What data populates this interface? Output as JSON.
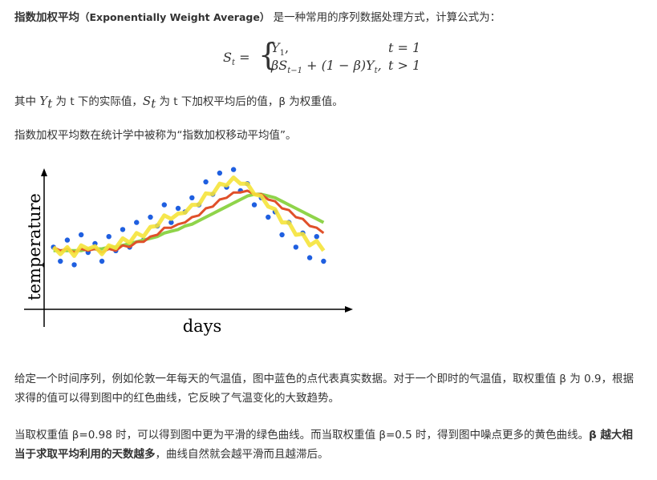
{
  "intro": {
    "term": "指数加权平均",
    "english": "（Exponentially Weight Average）",
    "rest": "是一种常用的序列数据处理方式，计算公式为："
  },
  "formula": {
    "lhs": "S",
    "lhs_sub": "t",
    "eq": "=",
    "case1": "Y",
    "case1_sub": "1",
    "case1_tail": ",",
    "case1_cond": "t = 1",
    "case2_a": "βS",
    "case2_sub": "t−1",
    "case2_b": " + (1 − β)Y",
    "case2_sub2": "t",
    "case2_tail": ",",
    "case2_cond": "t > 1"
  },
  "definition": {
    "a": "其中 ",
    "y": "Y",
    "y_sub": "t",
    "b": " 为 t 下的实际值，",
    "s": "S",
    "s_sub": "t",
    "c": " 为 t 下加权平均后的值，β 为权重值。"
  },
  "note": "指数加权平均数在统计学中被称为“指数加权移动平均值”。",
  "chart_data": {
    "type": "scatter",
    "xlabel": "days",
    "ylabel": "temperature",
    "xlim": [
      0,
      41
    ],
    "ylim": [
      10,
      85
    ],
    "x": [
      1,
      2,
      3,
      4,
      5,
      6,
      7,
      8,
      9,
      10,
      11,
      12,
      13,
      14,
      15,
      16,
      17,
      18,
      19,
      20,
      21,
      22,
      23,
      24,
      25,
      26,
      27,
      28,
      29,
      30,
      31,
      32,
      33,
      34,
      35,
      36,
      37,
      38,
      39,
      40
    ],
    "series": [
      {
        "color": "#1f5fe0",
        "values": [
          38,
          30,
          42,
          28,
          45,
          35,
          40,
          30,
          44,
          36,
          48,
          38,
          52,
          42,
          55,
          50,
          62,
          52,
          60,
          58,
          66,
          62,
          75,
          68,
          80,
          72,
          82,
          70,
          74,
          62,
          66,
          55,
          58,
          45,
          52,
          38,
          46,
          32,
          44,
          30
        ]
      },
      {
        "color": "#f5e33a",
        "values": [
          38,
          34,
          38,
          33,
          39,
          37,
          38.5,
          34,
          39,
          37.5,
          43,
          40.5,
          46,
          44,
          49.5,
          50,
          56,
          54,
          57,
          57.5,
          62,
          62,
          68.5,
          68,
          74,
          73,
          77.5,
          74,
          74,
          68,
          67,
          61,
          59.5,
          52,
          52,
          45,
          45.5,
          39,
          41.5,
          36
        ]
      },
      {
        "color": "#e0502a",
        "values": [
          38,
          36,
          37,
          35,
          37,
          36,
          37,
          35,
          37,
          36,
          39,
          38,
          41,
          41,
          44,
          45,
          49,
          49,
          51,
          52,
          55,
          56,
          60,
          61,
          65,
          66,
          69,
          69,
          70,
          68,
          68,
          65,
          64,
          60,
          59,
          55,
          54,
          50,
          49,
          46
        ]
      },
      {
        "color": "#8fd44a",
        "values": [
          36,
          36,
          36,
          36,
          36,
          37,
          37,
          37,
          38,
          38,
          39,
          40,
          41,
          42,
          43,
          44,
          46,
          47,
          48,
          50,
          51,
          53,
          55,
          57,
          59,
          61,
          63,
          65,
          67,
          68,
          68,
          67,
          66,
          64,
          62,
          60,
          58,
          56,
          54,
          52
        ]
      }
    ]
  },
  "para1": "给定一个时间序列，例如伦敦一年每天的气温值，图中蓝色的点代表真实数据。对于一个即时的气温值，取权重值 β 为 0.9，根据求得的值可以得到图中的红色曲线，它反映了气温变化的大致趋势。",
  "para2": {
    "a": "当取权重值 β=0.98 时，可以得到图中更为平滑的绿色曲线。而当取权重值 β=0.5 时，得到图中噪点更多的黄色曲线。",
    "bold": "β 越大相当于求取平均利用的天数越多",
    "b": "，曲线自然就会越平滑而且越滞后。"
  }
}
